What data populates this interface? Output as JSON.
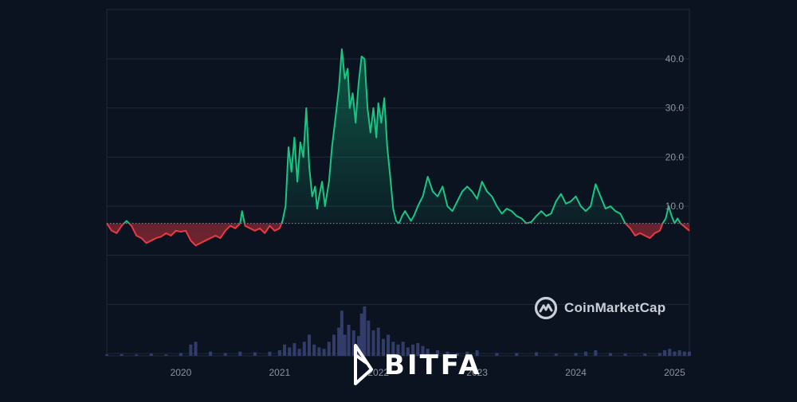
{
  "chart_data": {
    "type": "area",
    "title": "",
    "xlabel": "",
    "ylabel": "",
    "x_tick_labels": [
      "2020",
      "2021",
      "2022",
      "2023",
      "2024",
      "2025"
    ],
    "y_tick_labels": [
      "10.0",
      "20.0",
      "30.0",
      "40.0"
    ],
    "y_ticks": [
      10,
      20,
      30,
      40
    ],
    "ylim": [
      -30,
      50
    ],
    "xlim": [
      2019.25,
      2025.15
    ],
    "baseline": 6.5,
    "grid": true,
    "colors": {
      "above": "#16c784",
      "below": "#ea3943",
      "volume": "#3b4475",
      "grid": "#1f2a38",
      "tick": "#8a93a3",
      "baseline": "#8a93a3"
    },
    "series": [
      {
        "x": [
          2019.25,
          2019.3,
          2019.35,
          2019.4,
          2019.45,
          2019.5,
          2019.55,
          2019.6,
          2019.65,
          2019.7,
          2019.75,
          2019.8,
          2019.85,
          2019.9,
          2019.95,
          2020.0,
          2020.05,
          2020.1,
          2020.15,
          2020.2,
          2020.25,
          2020.3,
          2020.35,
          2020.4,
          2020.45,
          2020.5,
          2020.55,
          2020.6,
          2020.62,
          2020.65,
          2020.7,
          2020.75,
          2020.8,
          2020.85,
          2020.9,
          2020.95,
          2021.0,
          2021.03,
          2021.06,
          2021.09,
          2021.12,
          2021.15,
          2021.18,
          2021.21,
          2021.24,
          2021.27,
          2021.3,
          2021.33,
          2021.36,
          2021.38,
          2021.4,
          2021.43,
          2021.46,
          2021.5,
          2021.53,
          2021.56,
          2021.6,
          2021.63,
          2021.66,
          2021.69,
          2021.71,
          2021.74,
          2021.77,
          2021.8,
          2021.83,
          2021.86,
          2021.89,
          2021.92,
          2021.95,
          2021.98,
          2022.0,
          2022.03,
          2022.06,
          2022.09,
          2022.12,
          2022.15,
          2022.18,
          2022.21,
          2022.24,
          2022.27,
          2022.3,
          2022.33,
          2022.36,
          2022.4,
          2022.45,
          2022.5,
          2022.55,
          2022.6,
          2022.65,
          2022.7,
          2022.75,
          2022.8,
          2022.85,
          2022.9,
          2022.95,
          2023.0,
          2023.05,
          2023.1,
          2023.15,
          2023.2,
          2023.25,
          2023.3,
          2023.35,
          2023.4,
          2023.45,
          2023.5,
          2023.55,
          2023.6,
          2023.65,
          2023.7,
          2023.75,
          2023.8,
          2023.85,
          2023.9,
          2023.95,
          2024.0,
          2024.05,
          2024.1,
          2024.15,
          2024.2,
          2024.25,
          2024.3,
          2024.35,
          2024.4,
          2024.45,
          2024.5,
          2024.55,
          2024.6,
          2024.65,
          2024.7,
          2024.75,
          2024.8,
          2024.85,
          2024.88,
          2024.91,
          2024.94,
          2024.97,
          2025.0,
          2025.03,
          2025.06,
          2025.09,
          2025.12,
          2025.15
        ],
        "y": [
          6.5,
          5.0,
          4.5,
          6.0,
          7.0,
          6.0,
          4.0,
          3.5,
          2.5,
          3.0,
          3.5,
          3.8,
          4.5,
          4.0,
          5.0,
          4.8,
          5.0,
          3.0,
          2.0,
          2.5,
          3.0,
          3.5,
          4.0,
          3.5,
          5.0,
          6.0,
          5.5,
          6.5,
          9.0,
          6.0,
          5.5,
          5.0,
          5.5,
          4.5,
          6.0,
          5.0,
          5.5,
          7.0,
          10.0,
          22.0,
          17.0,
          24.0,
          15.0,
          23.0,
          20.0,
          30.0,
          18.0,
          12.0,
          14.0,
          9.5,
          12.0,
          15.0,
          10.0,
          15.0,
          22.0,
          27.0,
          34.0,
          42.0,
          36.0,
          38.0,
          30.0,
          33.0,
          27.0,
          35.0,
          40.5,
          40.0,
          30.0,
          25.0,
          30.0,
          24.0,
          31.0,
          27.0,
          32.0,
          22.0,
          16.0,
          9.5,
          7.0,
          6.5,
          8.0,
          9.0,
          8.0,
          7.0,
          8.0,
          10.0,
          12.0,
          16.0,
          13.0,
          12.0,
          14.0,
          10.0,
          9.0,
          11.0,
          13.0,
          14.0,
          13.0,
          11.5,
          15.0,
          13.0,
          12.0,
          10.0,
          8.5,
          9.5,
          9.0,
          8.0,
          7.5,
          6.5,
          6.8,
          8.0,
          9.0,
          8.0,
          8.5,
          11.0,
          12.5,
          10.5,
          11.0,
          12.0,
          10.0,
          9.0,
          10.0,
          14.5,
          12.0,
          9.5,
          10.0,
          9.0,
          8.5,
          6.5,
          5.5,
          4.0,
          4.5,
          4.0,
          3.5,
          4.5,
          5.0,
          6.5,
          7.5,
          10.0,
          8.0,
          6.5,
          7.5,
          6.5,
          6.0,
          5.5,
          5.0
        ]
      }
    ],
    "volume": {
      "x": [
        2019.25,
        2019.4,
        2019.55,
        2019.7,
        2019.85,
        2020.0,
        2020.1,
        2020.15,
        2020.3,
        2020.45,
        2020.6,
        2020.75,
        2020.9,
        2021.0,
        2021.05,
        2021.1,
        2021.15,
        2021.2,
        2021.25,
        2021.3,
        2021.35,
        2021.4,
        2021.45,
        2021.5,
        2021.55,
        2021.6,
        2021.63,
        2021.66,
        2021.7,
        2021.75,
        2021.8,
        2021.83,
        2021.86,
        2021.9,
        2021.95,
        2022.0,
        2022.05,
        2022.1,
        2022.15,
        2022.2,
        2022.25,
        2022.3,
        2022.35,
        2022.4,
        2022.45,
        2022.5,
        2022.6,
        2022.7,
        2022.8,
        2022.9,
        2023.0,
        2023.2,
        2023.4,
        2023.6,
        2023.8,
        2024.0,
        2024.1,
        2024.2,
        2024.35,
        2024.5,
        2024.7,
        2024.85,
        2024.9,
        2024.95,
        2025.0,
        2025.05,
        2025.1,
        2025.15
      ],
      "values": [
        1,
        1.2,
        1,
        1.5,
        1,
        2,
        8,
        10,
        3,
        2,
        3,
        2.5,
        3,
        4,
        8,
        6,
        9,
        5,
        10,
        15,
        8,
        6,
        5,
        10,
        15,
        20,
        32,
        15,
        22,
        18,
        14,
        30,
        35,
        25,
        18,
        20,
        12,
        15,
        10,
        8,
        10,
        6,
        8,
        9,
        7,
        5,
        4,
        3,
        2,
        3,
        4,
        2,
        2,
        2.5,
        1.5,
        2,
        3,
        4,
        2,
        1.5,
        1.5,
        2,
        4,
        5,
        3,
        4,
        3,
        3
      ]
    }
  },
  "brand": {
    "coinmarketcap": "CoinMarketCap",
    "bitfa": "BITFA"
  }
}
